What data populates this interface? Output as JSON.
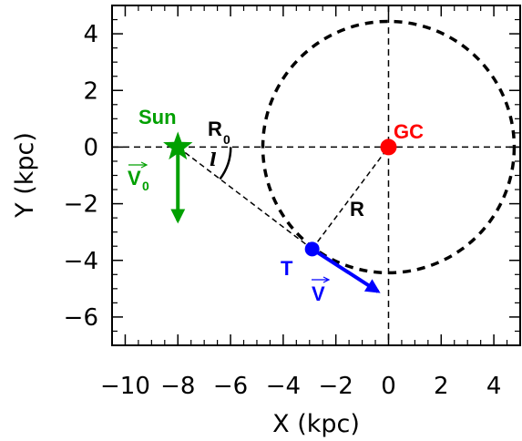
{
  "chart_data": {
    "type": "diagram",
    "xlabel": "X (kpc)",
    "ylabel": "Y (kpc)",
    "xlim": [
      -10.5,
      5
    ],
    "ylim": [
      -7,
      5
    ],
    "x_ticks": [
      -10,
      -8,
      -6,
      -4,
      -2,
      0,
      2,
      4
    ],
    "y_ticks": [
      -6,
      -4,
      -2,
      0,
      2,
      4
    ],
    "x_tick_labels": [
      "−10",
      "−8",
      "−6",
      "−4",
      "−2",
      "0",
      "2",
      "4"
    ],
    "y_tick_labels": [
      "−6",
      "−4",
      "−2",
      "0",
      "2",
      "4"
    ],
    "circle": {
      "center": [
        0,
        0
      ],
      "radius": 4.6,
      "style": "dashed"
    },
    "sun": {
      "x": -8,
      "y": 0,
      "label": "Sun",
      "velocity_label": "V",
      "velocity_sub": "0",
      "velocity_dy": -2.6,
      "color": "#00a000"
    },
    "galactic_center": {
      "x": 0,
      "y": 0,
      "label": "GC",
      "color": "#ff0000"
    },
    "tracer": {
      "x": -2.9,
      "y": -3.6,
      "label": "T",
      "velocity_label": "V",
      "velocity_end": [
        -0.4,
        -5.1
      ],
      "color": "#0000ff"
    },
    "r0_label": "R",
    "r0_sub": "0",
    "r_label": "R",
    "angle_label": "l"
  }
}
